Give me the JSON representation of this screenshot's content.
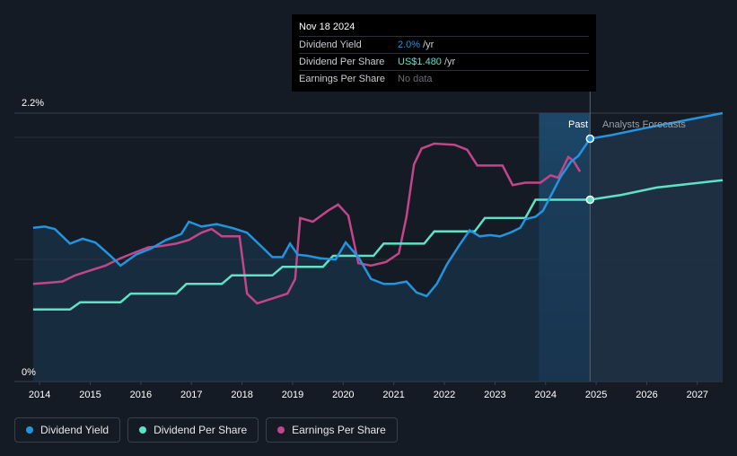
{
  "tooltip": {
    "date": "Nov 18 2024",
    "rows": [
      {
        "label": "Dividend Yield",
        "value": "2.0%",
        "unit": "/yr"
      },
      {
        "label": "Dividend Per Share",
        "value": "US$1.480",
        "unit": "/yr"
      },
      {
        "label": "Earnings Per Share",
        "value": "No data",
        "unit": ""
      }
    ]
  },
  "regions": {
    "past": "Past",
    "forecast": "Analysts Forecasts"
  },
  "legend": [
    {
      "label": "Dividend Yield",
      "color": "#2394df"
    },
    {
      "label": "Dividend Per Share",
      "color": "#5fe1c8"
    },
    {
      "label": "Earnings Per Share",
      "color": "#c1468a"
    }
  ],
  "chart_data": {
    "type": "line",
    "x_ticks": [
      "2014",
      "2015",
      "2016",
      "2017",
      "2018",
      "2019",
      "2020",
      "2021",
      "2022",
      "2023",
      "2024",
      "2025",
      "2026",
      "2027"
    ],
    "y_ticks": [
      "2.2%",
      "0%"
    ],
    "xlim": [
      2013.5,
      2027.5
    ],
    "ylim": [
      0,
      2.2
    ],
    "divider_x": 2024.88,
    "past_band_start": 2023.87,
    "series": [
      {
        "name": "Dividend Yield",
        "color": "#2394df",
        "points": [
          [
            2013.87,
            1.26
          ],
          [
            2014.1,
            1.27
          ],
          [
            2014.3,
            1.25
          ],
          [
            2014.6,
            1.13
          ],
          [
            2014.85,
            1.17
          ],
          [
            2015.1,
            1.14
          ],
          [
            2015.4,
            1.03
          ],
          [
            2015.6,
            0.95
          ],
          [
            2015.9,
            1.04
          ],
          [
            2016.2,
            1.09
          ],
          [
            2016.5,
            1.16
          ],
          [
            2016.8,
            1.21
          ],
          [
            2016.95,
            1.31
          ],
          [
            2017.2,
            1.27
          ],
          [
            2017.5,
            1.29
          ],
          [
            2017.8,
            1.26
          ],
          [
            2018.1,
            1.22
          ],
          [
            2018.4,
            1.1
          ],
          [
            2018.6,
            1.02
          ],
          [
            2018.8,
            1.02
          ],
          [
            2018.95,
            1.13
          ],
          [
            2019.1,
            1.04
          ],
          [
            2019.3,
            1.03
          ],
          [
            2019.55,
            1.01
          ],
          [
            2019.85,
            1.0
          ],
          [
            2020.05,
            1.14
          ],
          [
            2020.3,
            1.02
          ],
          [
            2020.55,
            0.84
          ],
          [
            2020.8,
            0.8
          ],
          [
            2021.0,
            0.8
          ],
          [
            2021.25,
            0.82
          ],
          [
            2021.45,
            0.73
          ],
          [
            2021.65,
            0.7
          ],
          [
            2021.85,
            0.8
          ],
          [
            2022.05,
            0.96
          ],
          [
            2022.3,
            1.12
          ],
          [
            2022.5,
            1.24
          ],
          [
            2022.7,
            1.19
          ],
          [
            2022.9,
            1.2
          ],
          [
            2023.1,
            1.19
          ],
          [
            2023.3,
            1.22
          ],
          [
            2023.5,
            1.26
          ],
          [
            2023.6,
            1.33
          ],
          [
            2023.8,
            1.35
          ],
          [
            2023.95,
            1.4
          ],
          [
            2024.1,
            1.52
          ],
          [
            2024.3,
            1.68
          ],
          [
            2024.5,
            1.8
          ],
          [
            2024.65,
            1.85
          ],
          [
            2024.88,
            1.99
          ],
          [
            2025.3,
            2.02
          ],
          [
            2026.0,
            2.08
          ],
          [
            2027.5,
            2.2
          ]
        ]
      },
      {
        "name": "Dividend Per Share",
        "color": "#5fe1c8",
        "points": [
          [
            2013.87,
            0.59
          ],
          [
            2014.6,
            0.59
          ],
          [
            2014.8,
            0.65
          ],
          [
            2015.6,
            0.65
          ],
          [
            2015.8,
            0.72
          ],
          [
            2016.7,
            0.72
          ],
          [
            2016.9,
            0.8
          ],
          [
            2017.6,
            0.8
          ],
          [
            2017.8,
            0.87
          ],
          [
            2018.6,
            0.87
          ],
          [
            2018.8,
            0.94
          ],
          [
            2019.6,
            0.94
          ],
          [
            2019.8,
            1.03
          ],
          [
            2020.6,
            1.03
          ],
          [
            2020.8,
            1.13
          ],
          [
            2021.6,
            1.13
          ],
          [
            2021.8,
            1.23
          ],
          [
            2022.6,
            1.23
          ],
          [
            2022.8,
            1.34
          ],
          [
            2023.6,
            1.34
          ],
          [
            2023.8,
            1.49
          ],
          [
            2024.88,
            1.49
          ],
          [
            2025.5,
            1.53
          ],
          [
            2026.2,
            1.59
          ],
          [
            2027.5,
            1.65
          ]
        ]
      },
      {
        "name": "Earnings Per Share",
        "color": "#c1468a",
        "points": [
          [
            2013.87,
            0.8
          ],
          [
            2014.2,
            0.81
          ],
          [
            2014.45,
            0.82
          ],
          [
            2014.7,
            0.87
          ],
          [
            2015.0,
            0.91
          ],
          [
            2015.3,
            0.95
          ],
          [
            2015.6,
            1.01
          ],
          [
            2015.9,
            1.06
          ],
          [
            2016.15,
            1.1
          ],
          [
            2016.4,
            1.11
          ],
          [
            2016.7,
            1.13
          ],
          [
            2016.95,
            1.16
          ],
          [
            2017.2,
            1.22
          ],
          [
            2017.4,
            1.25
          ],
          [
            2017.6,
            1.19
          ],
          [
            2017.95,
            1.19
          ],
          [
            2018.1,
            0.72
          ],
          [
            2018.3,
            0.64
          ],
          [
            2018.6,
            0.68
          ],
          [
            2018.9,
            0.72
          ],
          [
            2019.05,
            0.84
          ],
          [
            2019.15,
            1.34
          ],
          [
            2019.4,
            1.31
          ],
          [
            2019.7,
            1.4
          ],
          [
            2019.9,
            1.45
          ],
          [
            2020.1,
            1.36
          ],
          [
            2020.3,
            0.97
          ],
          [
            2020.55,
            0.95
          ],
          [
            2020.85,
            0.98
          ],
          [
            2021.1,
            1.05
          ],
          [
            2021.25,
            1.35
          ],
          [
            2021.4,
            1.78
          ],
          [
            2021.55,
            1.91
          ],
          [
            2021.8,
            1.95
          ],
          [
            2022.2,
            1.94
          ],
          [
            2022.45,
            1.9
          ],
          [
            2022.65,
            1.77
          ],
          [
            2022.9,
            1.77
          ],
          [
            2023.15,
            1.77
          ],
          [
            2023.35,
            1.61
          ],
          [
            2023.6,
            1.63
          ],
          [
            2023.9,
            1.63
          ],
          [
            2024.1,
            1.69
          ],
          [
            2024.25,
            1.67
          ],
          [
            2024.45,
            1.84
          ],
          [
            2024.55,
            1.81
          ],
          [
            2024.68,
            1.72
          ]
        ]
      }
    ]
  }
}
